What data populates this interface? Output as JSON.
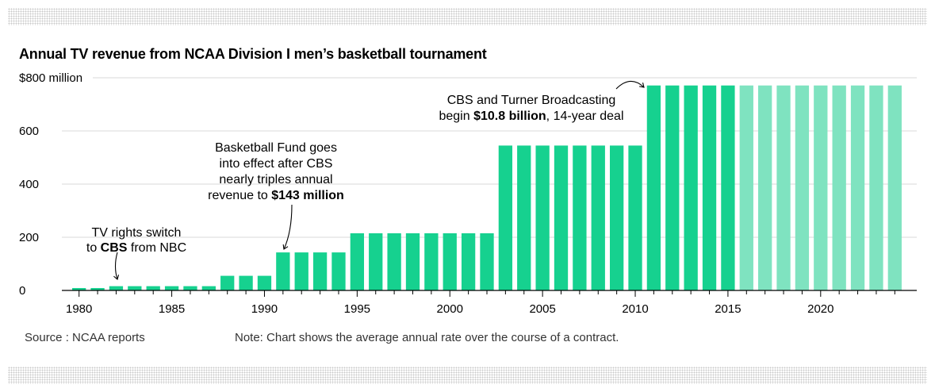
{
  "chart_data": {
    "type": "bar",
    "title": "Annual TV revenue from NCAA Division I men’s basketball tournament",
    "xlabel": "",
    "ylabel": "",
    "ylim": [
      0,
      800
    ],
    "y_unit_label": "$800 million",
    "yticks": [
      {
        "value": 0,
        "label": "0"
      },
      {
        "value": 200,
        "label": "200"
      },
      {
        "value": 400,
        "label": "400"
      },
      {
        "value": 600,
        "label": "600"
      },
      {
        "value": 800,
        "label": "$800 million"
      }
    ],
    "xticks": [
      {
        "value": 1980,
        "label": "1980"
      },
      {
        "value": 1985,
        "label": "1985"
      },
      {
        "value": 1990,
        "label": "1990"
      },
      {
        "value": 1995,
        "label": "1995"
      },
      {
        "value": 2000,
        "label": "2000"
      },
      {
        "value": 2005,
        "label": "2005"
      },
      {
        "value": 2010,
        "label": "2010"
      },
      {
        "value": 2015,
        "label": "2015"
      },
      {
        "value": 2020,
        "label": "2020"
      }
    ],
    "grid": true,
    "colors": {
      "actual": "#16d18f",
      "projected": "#7fe3c0",
      "grid": "#d9d9d9"
    },
    "projected_from_year": 2016,
    "years": [
      1980,
      1981,
      1982,
      1983,
      1984,
      1985,
      1986,
      1987,
      1988,
      1989,
      1990,
      1991,
      1992,
      1993,
      1994,
      1995,
      1996,
      1997,
      1998,
      1999,
      2000,
      2001,
      2002,
      2003,
      2004,
      2005,
      2006,
      2007,
      2008,
      2009,
      2010,
      2011,
      2012,
      2013,
      2014,
      2015,
      2016,
      2017,
      2018,
      2019,
      2020,
      2021,
      2022,
      2023,
      2024
    ],
    "values": [
      9,
      9,
      16,
      16,
      16,
      16,
      16,
      16,
      55,
      55,
      55,
      143,
      143,
      143,
      143,
      215,
      215,
      215,
      215,
      215,
      215,
      215,
      215,
      545,
      545,
      545,
      545,
      545,
      545,
      545,
      545,
      771,
      771,
      771,
      771,
      771,
      771,
      771,
      771,
      771,
      771,
      771,
      771,
      771,
      771
    ],
    "annotations": [
      {
        "lines": [
          [
            "TV rights switch"
          ],
          [
            {
              "b": false,
              "t": "to "
            },
            {
              "b": true,
              "t": "CBS"
            },
            {
              "b": false,
              "t": " from NBC"
            }
          ]
        ],
        "year": 1982
      },
      {
        "lines": [
          [
            "Basketball Fund goes"
          ],
          [
            "into effect after CBS"
          ],
          [
            "nearly triples annual"
          ],
          [
            {
              "b": false,
              "t": "revenue to "
            },
            {
              "b": true,
              "t": "$143 million"
            }
          ]
        ],
        "year": 1991
      },
      {
        "lines": [
          [
            "CBS and Turner Broadcasting"
          ],
          [
            {
              "b": false,
              "t": "begin "
            },
            {
              "b": true,
              "t": "$10.8 billion"
            },
            {
              "b": false,
              "t": ", 14-year deal"
            }
          ]
        ],
        "year": 2011
      }
    ]
  },
  "footer": {
    "source": "Source : NCAA reports",
    "note": "Note: Chart shows the average annual rate over the course of a contract."
  }
}
